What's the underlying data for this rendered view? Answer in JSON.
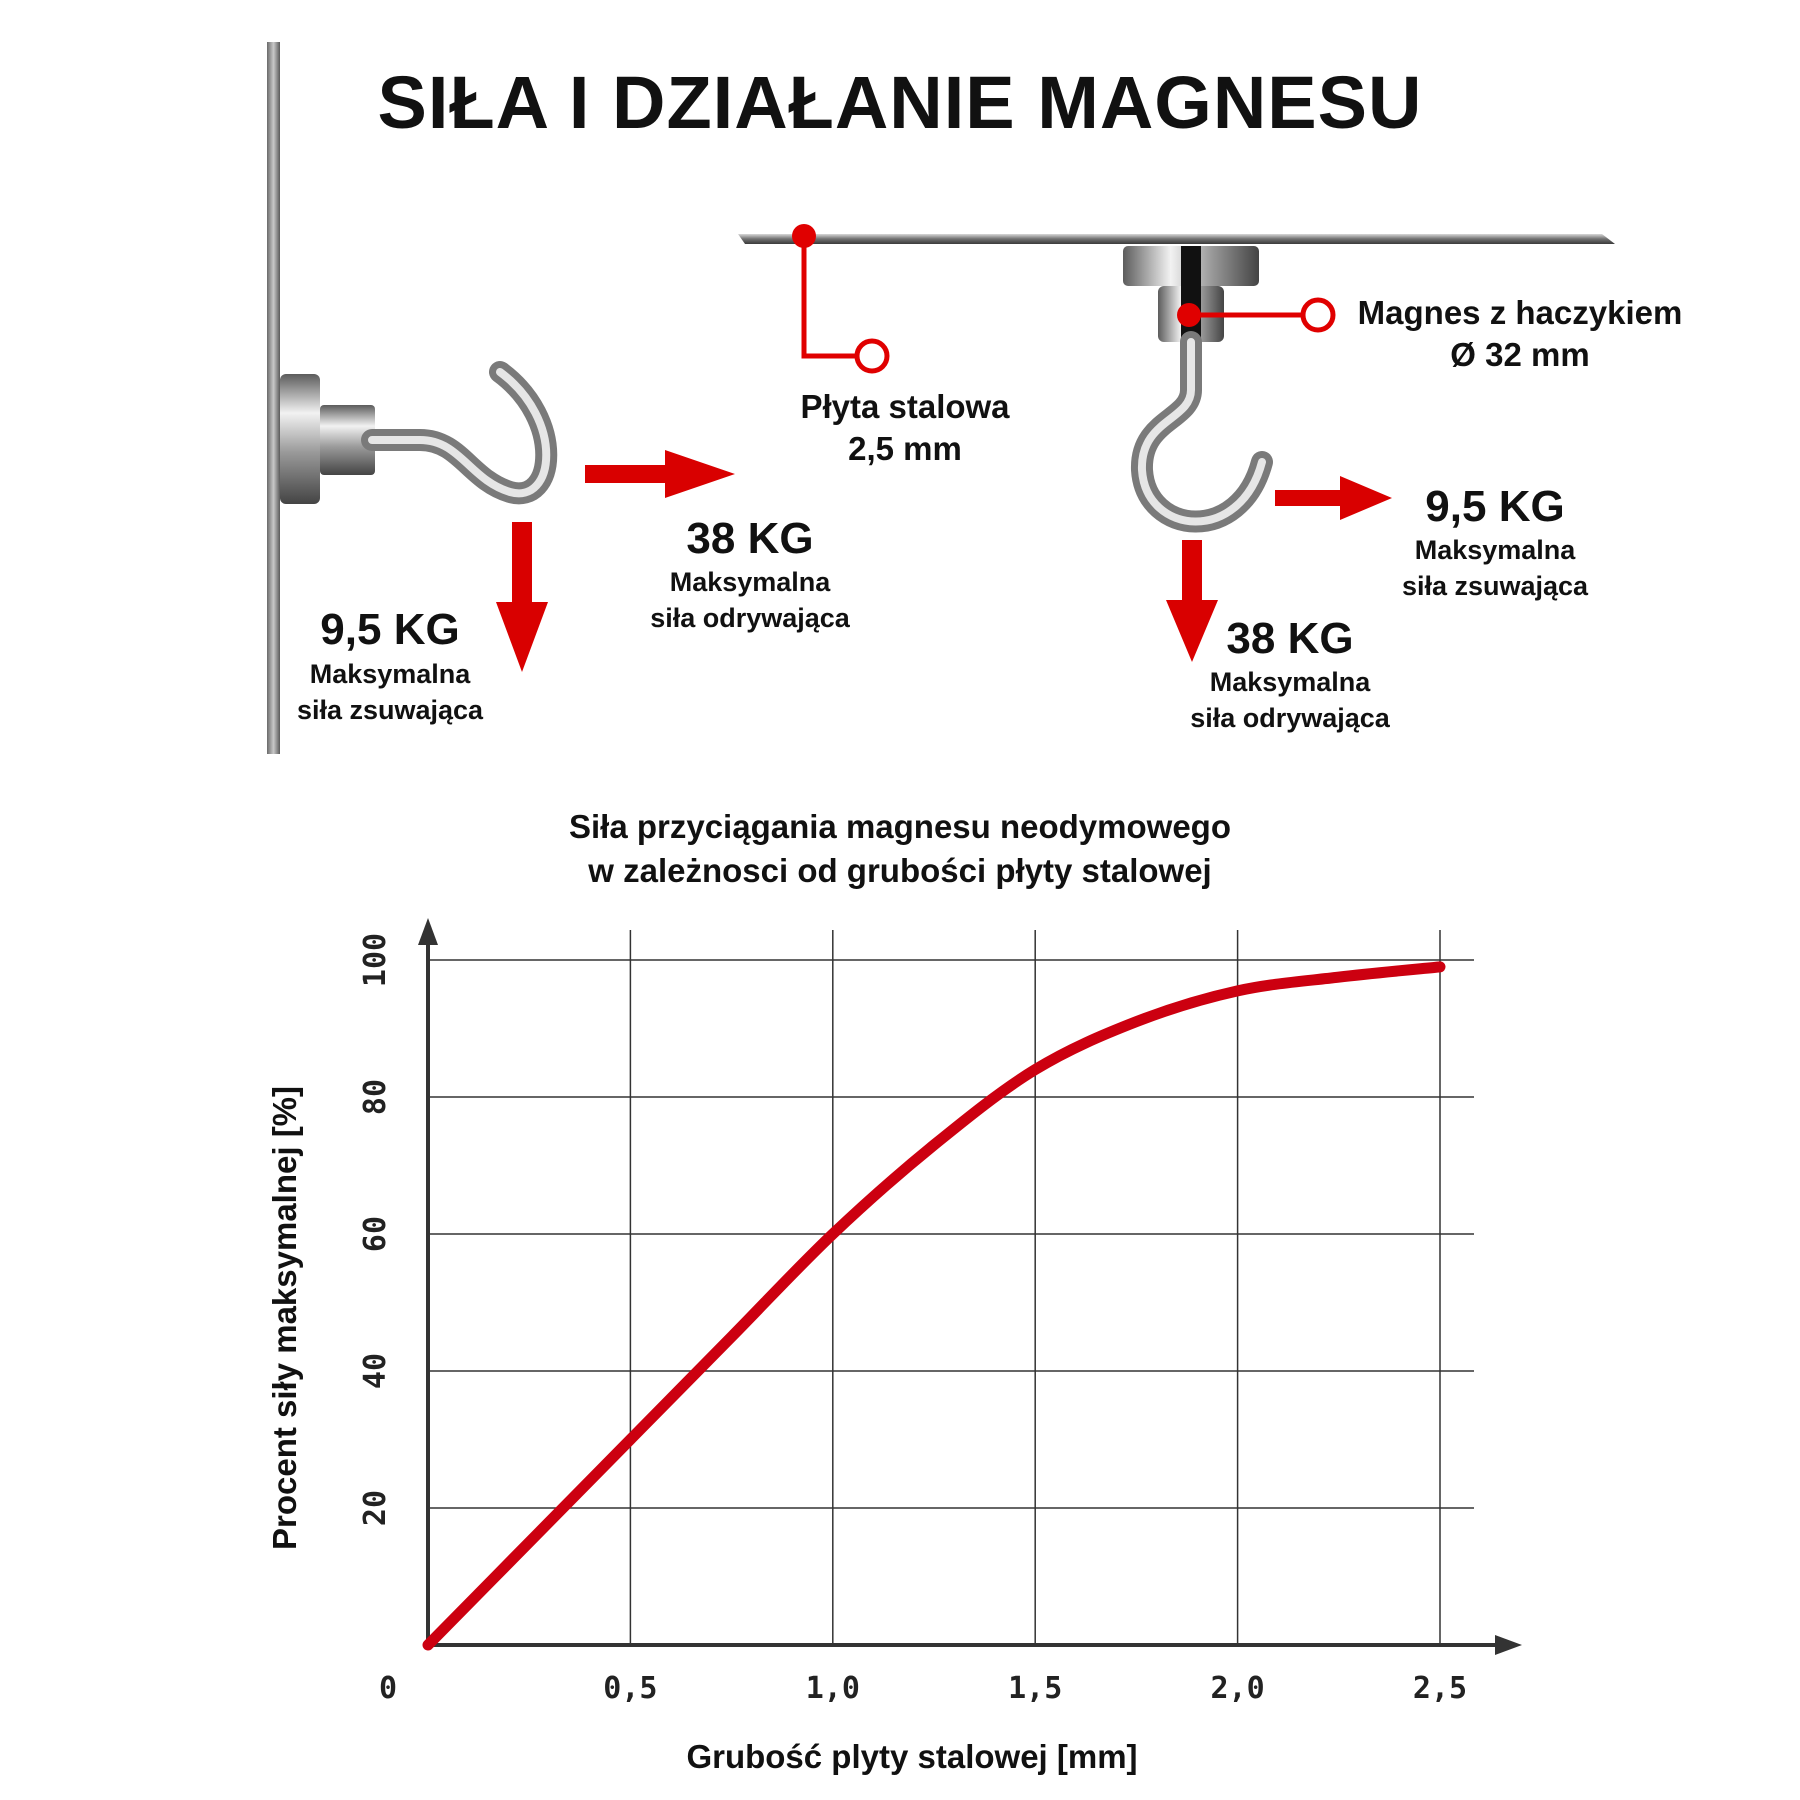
{
  "heading": "SIŁA I DZIAŁANIE MAGNESU",
  "wall_example": {
    "shear_value": "9,5 KG",
    "shear_label_1": "Maksymalna",
    "shear_label_2": "siła zsuwająca",
    "pull_value": "38 KG",
    "pull_label_1": "Maksymalna",
    "pull_label_2": "siła odrywająca"
  },
  "ceiling_example": {
    "plate_label_1": "Płyta stalowa",
    "plate_label_2": "2,5 mm",
    "magnet_label_1": "Magnes z haczykiem",
    "magnet_label_2": "Ø 32 mm",
    "shear_value": "9,5 KG",
    "shear_label_1": "Maksymalna",
    "shear_label_2": "siła zsuwająca",
    "pull_value": "38 KG",
    "pull_label_1": "Maksymalna",
    "pull_label_2": "siła odrywająca"
  },
  "colors": {
    "accent": "#d90000",
    "curve": "#cc0010",
    "grid": "#333333"
  },
  "chart_data": {
    "type": "line",
    "title": "Siła przyciągania magnesu neodymowego\nw zależnosci od grubości płyty stalowej",
    "title_line_1": "Siła przyciągania magnesu neodymowego",
    "title_line_2": "w zależnosci od grubości płyty stalowej",
    "xlabel": "Grubość plyty stalowej [mm]",
    "ylabel": "Procent siły maksymalnej [%]",
    "x_ticks": [
      "0",
      "0,5",
      "1,0",
      "1,5",
      "2,0",
      "2,5"
    ],
    "y_ticks": [
      "20",
      "40",
      "60",
      "80",
      "100"
    ],
    "xlim": [
      0,
      2.6
    ],
    "ylim": [
      0,
      100
    ],
    "grid": true,
    "series": [
      {
        "x": [
          0,
          0.25,
          0.5,
          0.75,
          1.0,
          1.25,
          1.5,
          1.75,
          2.0,
          2.25,
          2.5
        ],
        "y": [
          0,
          15,
          30,
          45,
          60,
          73,
          84,
          91,
          95.5,
          97.5,
          99
        ]
      }
    ]
  }
}
